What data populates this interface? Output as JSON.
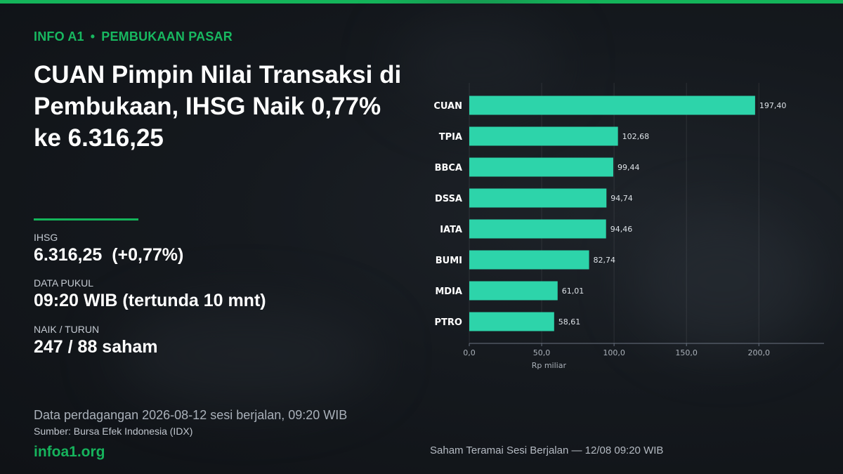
{
  "eyebrow": {
    "brand": "INFO A1",
    "separator": "•",
    "section": "PEMBUKAAN PASAR"
  },
  "headline": "CUAN Pimpin Nilai Transaksi di Pembukaan, IHSG Naik 0,77% ke 6.316,25",
  "stats": [
    {
      "label": "IHSG",
      "value": "6.316,25  (+0,77%)"
    },
    {
      "label": "DATA PUKUL",
      "value": "09:20 WIB (tertunda 10 mnt)"
    },
    {
      "label": "NAIK / TURUN",
      "value": "247 / 88 saham"
    }
  ],
  "footer": {
    "line1": "Data perdagangan 2026-08-12 sesi berjalan, 09:20 WIB",
    "line2": "Sumber: Bursa Efek Indonesia (IDX)",
    "site": "infoa1.org",
    "caption": "Saham Teramai Sesi Berjalan — 12/08 09:20 WIB"
  },
  "colors": {
    "accent": "#14b45a",
    "bar": "#2dd4aa",
    "background": "#15191e"
  },
  "chart_data": {
    "type": "bar",
    "orientation": "horizontal",
    "categories": [
      "CUAN",
      "TPIA",
      "BBCA",
      "DSSA",
      "IATA",
      "BUMI",
      "MDIA",
      "PTRO"
    ],
    "values": [
      197.4,
      102.68,
      99.44,
      94.74,
      94.46,
      82.74,
      61.01,
      58.61
    ],
    "value_labels": [
      "197,40",
      "102,68",
      "99,44",
      "94,74",
      "94,46",
      "82,74",
      "61,01",
      "58,61"
    ],
    "xlabel": "Rp miliar",
    "xlim": [
      0,
      245
    ],
    "xticks": [
      0,
      50,
      100,
      150,
      200
    ],
    "xtick_labels": [
      "0,0",
      "50,0",
      "100,0",
      "150,0",
      "200,0"
    ],
    "grid": true
  }
}
